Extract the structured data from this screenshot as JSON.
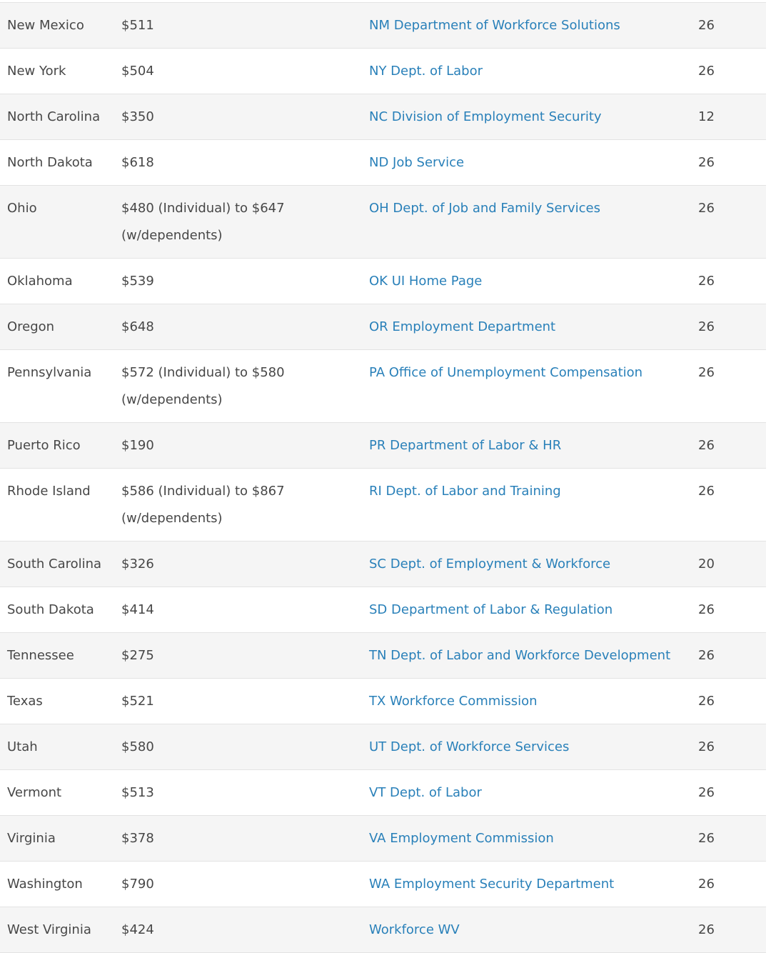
{
  "colors": {
    "link": "#2980b9",
    "text": "#474747",
    "stripe": "#f5f5f5",
    "border": "#e3e3e3",
    "background": "#ffffff"
  },
  "table": {
    "columns": [
      "state",
      "max_weekly_benefit",
      "agency_link",
      "max_weeks"
    ],
    "rows": [
      {
        "state": "New Mexico",
        "amount": "$511",
        "link": "NM Department of Workforce Solutions",
        "weeks": "26"
      },
      {
        "state": "New York",
        "amount": "$504",
        "link": "NY Dept. of Labor",
        "weeks": "26"
      },
      {
        "state": "North Carolina",
        "amount": "$350",
        "link": "NC Division of Employment Security",
        "weeks": "12"
      },
      {
        "state": "North Dakota",
        "amount": "$618",
        "link": "ND Job Service",
        "weeks": "26"
      },
      {
        "state": "Ohio",
        "amount": "$480 (Individual) to $647 (w/dependents)",
        "link": "OH Dept. of Job and Family Services",
        "weeks": "26"
      },
      {
        "state": "Oklahoma",
        "amount": "$539",
        "link": "OK UI Home Page",
        "weeks": "26"
      },
      {
        "state": "Oregon",
        "amount": "$648",
        "link": "OR Employment Department",
        "weeks": "26"
      },
      {
        "state": "Pennsylvania",
        "amount": "$572 (Individual) to $580 (w/dependents)",
        "link": "PA Office of Unemployment Compensation",
        "weeks": "26"
      },
      {
        "state": "Puerto Rico",
        "amount": "$190",
        "link": "PR Department of Labor & HR",
        "weeks": "26"
      },
      {
        "state": "Rhode Island",
        "amount": "$586 (Individual) to $867 (w/dependents)",
        "link": "RI Dept. of Labor and Training",
        "weeks": "26"
      },
      {
        "state": "South Carolina",
        "amount": "$326",
        "link": "SC Dept. of Employment & Workforce",
        "weeks": "20"
      },
      {
        "state": "South Dakota",
        "amount": "$414",
        "link": "SD Department of Labor & Regulation",
        "weeks": "26"
      },
      {
        "state": "Tennessee",
        "amount": "$275",
        "link": "TN Dept. of Labor and Workforce Development",
        "weeks": "26"
      },
      {
        "state": "Texas",
        "amount": "$521",
        "link": "TX Workforce Commission",
        "weeks": "26"
      },
      {
        "state": "Utah",
        "amount": "$580",
        "link": "UT Dept. of Workforce Services",
        "weeks": "26"
      },
      {
        "state": "Vermont",
        "amount": "$513",
        "link": "VT Dept. of Labor",
        "weeks": "26"
      },
      {
        "state": "Virginia",
        "amount": "$378",
        "link": "VA Employment Commission",
        "weeks": "26"
      },
      {
        "state": "Washington",
        "amount": "$790",
        "link": "WA Employment Security Department",
        "weeks": "26"
      },
      {
        "state": "West Virginia",
        "amount": "$424",
        "link": "Workforce WV",
        "weeks": "26"
      }
    ]
  }
}
